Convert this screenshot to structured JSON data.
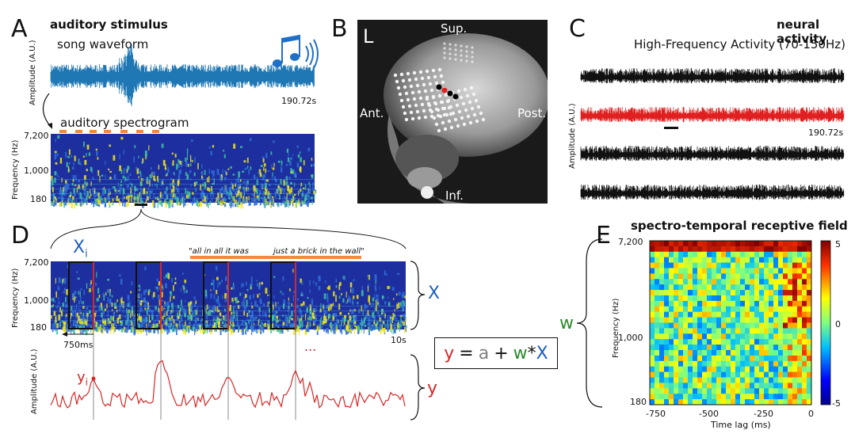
{
  "panels": {
    "A": {
      "letter": "A",
      "title": "auditory stimulus",
      "waveform_label": "song waveform",
      "waveform_ylabel": "Amplitude (A.U.)",
      "duration": "190.72s",
      "spectrogram_label": "auditory spectrogram",
      "spectrogram_ylabel": "Frequency (Hz)",
      "freq_ticks": [
        "7,200",
        "1,000",
        "180"
      ]
    },
    "B": {
      "letter": "B",
      "orient_L": "L",
      "sup": "Sup.",
      "inf": "Inf.",
      "ant": "Ant.",
      "post": "Post."
    },
    "C": {
      "letter": "C",
      "title": "neural activity",
      "subtitle": "High-Frequency Activity (70-150Hz)",
      "ylabel": "Amplitude (A.U.)",
      "duration": "190.72s"
    },
    "D": {
      "letter": "D",
      "xi": "X",
      "xi_sub": "i",
      "lyric1": "\"all in all it was",
      "lyric2": "just a brick in the wall\"",
      "ylabel_spec": "Frequency (Hz)",
      "freq_ticks": [
        "7,200",
        "1,000",
        "180"
      ],
      "window": "750ms",
      "duration": "10s",
      "X": "X",
      "ylabel_resp": "Amplitude (A.U.)",
      "yi": "y",
      "yi_sub": "i",
      "ellipsis": "...",
      "y": "y"
    },
    "equation": {
      "y": "y",
      "eq": "=",
      "a": "a",
      "plus": "+",
      "w": "w",
      "star": "*",
      "X": "X"
    },
    "E": {
      "letter": "E",
      "title": "spectro-temporal receptive field",
      "w": "w",
      "ylabel": "Frequency (Hz)",
      "yticks": [
        "7,200",
        "1,000",
        "180"
      ],
      "xlabel": "Time lag (ms)",
      "xticks": [
        "-750",
        "-500",
        "-250",
        "0"
      ],
      "cbar_ticks": [
        "5",
        "0",
        "-5"
      ]
    }
  },
  "colors": {
    "waveform": "#1f77b4",
    "spec_low": "#1d2f9e",
    "spec_high": "#f2e81a",
    "response": "#d62728",
    "highlight": "#e8423a",
    "orange": "#f08a3c",
    "eq_a": "#808080",
    "eq_w": "#2a8a2a",
    "eq_X": "#1f5fbf"
  }
}
